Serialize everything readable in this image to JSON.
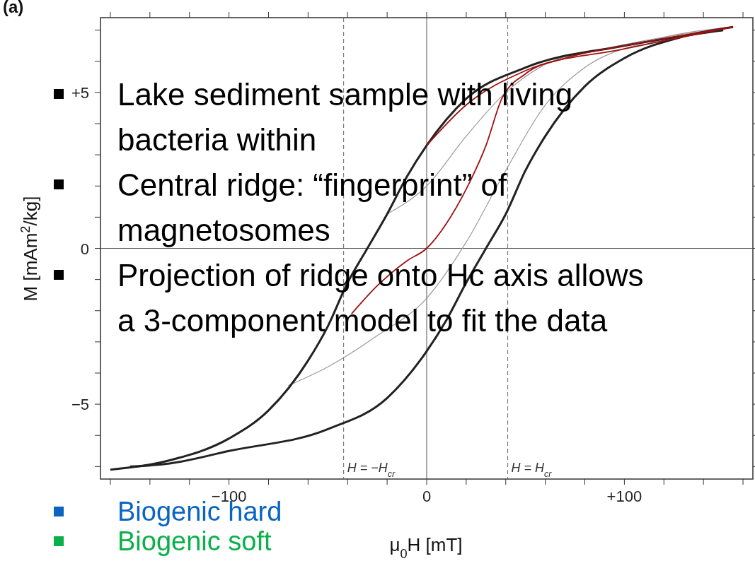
{
  "chart_data": {
    "type": "line",
    "xlabel": "μ$_{0}$H  [mT]",
    "ylabel": "M  [mAm$^{2}$/kg]",
    "xlim": [
      -165,
      165
    ],
    "ylim": [
      -7.4,
      7.4
    ],
    "xticks": [
      {
        "value": -160,
        "label": null
      },
      {
        "value": -140,
        "label": null
      },
      {
        "value": -120,
        "label": null
      },
      {
        "value": -100,
        "label": "−100"
      },
      {
        "value": -80,
        "label": null
      },
      {
        "value": -60,
        "label": null
      },
      {
        "value": -40,
        "label": null
      },
      {
        "value": -20,
        "label": null
      },
      {
        "value": 0,
        "label": "0"
      },
      {
        "value": 20,
        "label": null
      },
      {
        "value": 40,
        "label": null
      },
      {
        "value": 60,
        "label": null
      },
      {
        "value": 80,
        "label": null
      },
      {
        "value": 100,
        "label": "+100"
      },
      {
        "value": 120,
        "label": null
      },
      {
        "value": 140,
        "label": null
      },
      {
        "value": 160,
        "label": null
      }
    ],
    "yticks": [
      {
        "value": -7,
        "label": null
      },
      {
        "value": -6,
        "label": null
      },
      {
        "value": -5,
        "label": "−5"
      },
      {
        "value": -4,
        "label": null
      },
      {
        "value": -3,
        "label": null
      },
      {
        "value": -2,
        "label": null
      },
      {
        "value": -1,
        "label": null
      },
      {
        "value": 0,
        "label": "0"
      },
      {
        "value": 1,
        "label": null
      },
      {
        "value": 2,
        "label": null
      },
      {
        "value": 3,
        "label": null
      },
      {
        "value": 4,
        "label": null
      },
      {
        "value": 5,
        "label": "+5"
      },
      {
        "value": 6,
        "label": null
      },
      {
        "value": 7,
        "label": null
      }
    ],
    "grid": false,
    "series": [
      {
        "color": "#9a9a9a",
        "x": [
          -70,
          -50,
          -25,
          0,
          20,
          40,
          60,
          80,
          110,
          155
        ],
        "values": [
          -4.4,
          -3.8,
          -2.8,
          -1.6,
          0.2,
          2.5,
          4.6,
          5.8,
          6.6,
          7.1
        ]
      },
      {
        "color": "#9a9a9a",
        "x": [
          -20,
          0,
          20,
          40,
          60,
          90,
          155
        ],
        "values": [
          1.1,
          2.0,
          3.6,
          5.0,
          5.9,
          6.4,
          7.1
        ]
      },
      {
        "color": "#222222",
        "x": [
          -160,
          -130,
          -100,
          -80,
          -60,
          -50,
          -40,
          -30,
          -20,
          -10,
          0,
          20,
          50,
          100,
          150
        ],
        "values": [
          -7.1,
          -6.8,
          -6.1,
          -5.2,
          -3.6,
          -2.5,
          -1.1,
          0,
          1.1,
          2.3,
          3.3,
          4.8,
          5.8,
          6.5,
          7.0
        ]
      },
      {
        "color": "#222222",
        "x": [
          -150,
          -130,
          -100,
          -50,
          -20,
          0,
          10,
          20,
          30,
          40,
          50,
          60,
          80,
          100,
          130,
          155
        ],
        "values": [
          -7.0,
          -6.9,
          -6.5,
          -5.8,
          -4.8,
          -3.3,
          -2.3,
          -1.1,
          0,
          1.1,
          2.5,
          3.6,
          5.2,
          6.1,
          6.8,
          7.1
        ]
      },
      {
        "color": "#a01010",
        "x": [
          0,
          20,
          50,
          100,
          155
        ],
        "values": [
          3.3,
          4.6,
          5.7,
          6.4,
          7.1
        ]
      },
      {
        "color": "#a01010",
        "x": [
          -38,
          -25,
          -10,
          0,
          10,
          20,
          30,
          38,
          50,
          70,
          100,
          155
        ],
        "values": [
          -2.1,
          -1.2,
          -0.4,
          0,
          0.8,
          1.9,
          3.3,
          4.8,
          5.6,
          6.1,
          6.5,
          7.1
        ]
      }
    ],
    "ref_lines": [
      {
        "axis": "x",
        "value": 0,
        "color": "#555555",
        "line_style": "solid"
      },
      {
        "axis": "y",
        "value": 0,
        "color": "#555555",
        "line_style": "solid"
      },
      {
        "axis": "x",
        "value": -42,
        "label": "H = −H$_{cr}$",
        "color": "#666666",
        "line_style": "dashed"
      },
      {
        "axis": "x",
        "value": 41,
        "label": "H = H$_{cr}$",
        "color": "#666666",
        "line_style": "dashed"
      }
    ],
    "annotations": [
      "(a)",
      "Lake sediment sample with living bacteria within",
      "Central ridge: “fingerprint” of magnetosomes",
      "Projection of ridge onto Hc axis allows a 3-component model to fit the data",
      "Biogenic hard",
      "Biogenic soft"
    ]
  }
}
